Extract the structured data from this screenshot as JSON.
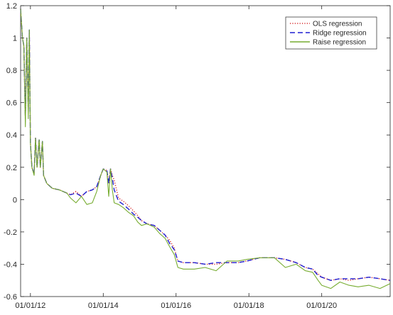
{
  "chart_data": {
    "type": "line",
    "title": "",
    "xlabel": "",
    "ylabel": "",
    "x_ticks": [
      "01/01/12",
      "01/01/14",
      "01/01/16",
      "01/01/18",
      "01/01/20"
    ],
    "x_tick_years": [
      2012,
      2014,
      2016,
      2018,
      2020
    ],
    "xlim": [
      2011.73,
      2021.88
    ],
    "ylim": [
      -0.6,
      1.2
    ],
    "y_ticks": [
      -0.6,
      -0.4,
      -0.2,
      0,
      0.2,
      0.4,
      0.6,
      0.8,
      1,
      1.2
    ],
    "y_tick_labels": [
      "-0.6",
      "-0.4",
      "-0.2",
      "0",
      "0.2",
      "0.4",
      "0.6",
      "0.8",
      "1",
      "1.2"
    ],
    "grid": false,
    "legend_position": "top-right",
    "series": [
      {
        "name": "OLS regression",
        "color": "#d62728",
        "style": "dotted",
        "x": [
          2011.73,
          2011.78,
          2011.82,
          2011.86,
          2011.9,
          2011.94,
          2011.97,
          2012.0,
          2012.04,
          2012.1,
          2012.14,
          2012.18,
          2012.24,
          2012.27,
          2012.33,
          2012.36,
          2012.45,
          2012.6,
          2012.8,
          2013.0,
          2013.1,
          2013.25,
          2013.4,
          2013.55,
          2013.7,
          2013.82,
          2013.93,
          2014.0,
          2014.1,
          2014.15,
          2014.2,
          2014.25,
          2014.3,
          2014.42,
          2014.55,
          2014.7,
          2014.83,
          2014.95,
          2015.05,
          2015.2,
          2015.4,
          2015.55,
          2015.7,
          2015.82,
          2015.95,
          2016.05,
          2016.2,
          2016.5,
          2016.8,
          2017.1,
          2017.4,
          2017.7,
          2017.95,
          2018.3,
          2018.7,
          2019.0,
          2019.3,
          2019.55,
          2019.75,
          2019.9,
          2020.0,
          2020.25,
          2020.5,
          2020.75,
          2021.0,
          2021.3,
          2021.6,
          2021.88
        ],
        "y": [
          1.18,
          1.0,
          0.95,
          0.5,
          1.0,
          0.55,
          1.05,
          0.35,
          0.2,
          0.16,
          0.38,
          0.2,
          0.37,
          0.2,
          0.36,
          0.15,
          0.1,
          0.07,
          0.06,
          0.04,
          0.03,
          0.05,
          0.02,
          0.05,
          0.06,
          0.08,
          0.15,
          0.19,
          0.18,
          0.1,
          0.19,
          0.15,
          0.12,
          0.01,
          -0.01,
          -0.04,
          -0.07,
          -0.1,
          -0.13,
          -0.15,
          -0.16,
          -0.19,
          -0.22,
          -0.25,
          -0.3,
          -0.38,
          -0.39,
          -0.39,
          -0.4,
          -0.4,
          -0.39,
          -0.39,
          -0.38,
          -0.36,
          -0.36,
          -0.37,
          -0.39,
          -0.42,
          -0.43,
          -0.46,
          -0.48,
          -0.5,
          -0.49,
          -0.5,
          -0.49,
          -0.48,
          -0.49,
          -0.5
        ]
      },
      {
        "name": "Ridge regression",
        "color": "#1f1fd2",
        "style": "dashed",
        "x": [
          2011.73,
          2011.78,
          2011.82,
          2011.86,
          2011.9,
          2011.94,
          2011.97,
          2012.0,
          2012.04,
          2012.1,
          2012.14,
          2012.18,
          2012.24,
          2012.27,
          2012.33,
          2012.36,
          2012.45,
          2012.6,
          2012.8,
          2013.0,
          2013.1,
          2013.25,
          2013.4,
          2013.55,
          2013.7,
          2013.82,
          2013.93,
          2014.0,
          2014.1,
          2014.15,
          2014.2,
          2014.25,
          2014.3,
          2014.42,
          2014.55,
          2014.7,
          2014.83,
          2014.95,
          2015.05,
          2015.2,
          2015.4,
          2015.55,
          2015.7,
          2015.82,
          2015.95,
          2016.05,
          2016.2,
          2016.5,
          2016.8,
          2017.1,
          2017.4,
          2017.7,
          2017.95,
          2018.3,
          2018.7,
          2019.0,
          2019.3,
          2019.55,
          2019.75,
          2019.9,
          2020.0,
          2020.25,
          2020.5,
          2020.75,
          2021.0,
          2021.3,
          2021.6,
          2021.88
        ],
        "y": [
          1.18,
          1.0,
          0.95,
          0.5,
          1.0,
          0.55,
          1.05,
          0.35,
          0.2,
          0.16,
          0.38,
          0.2,
          0.37,
          0.2,
          0.36,
          0.15,
          0.1,
          0.07,
          0.06,
          0.04,
          0.03,
          0.04,
          0.02,
          0.05,
          0.06,
          0.08,
          0.15,
          0.19,
          0.18,
          0.1,
          0.19,
          0.13,
          0.06,
          -0.01,
          -0.03,
          -0.06,
          -0.09,
          -0.11,
          -0.13,
          -0.15,
          -0.16,
          -0.19,
          -0.22,
          -0.27,
          -0.31,
          -0.38,
          -0.39,
          -0.39,
          -0.4,
          -0.39,
          -0.39,
          -0.39,
          -0.38,
          -0.36,
          -0.36,
          -0.37,
          -0.39,
          -0.42,
          -0.43,
          -0.47,
          -0.48,
          -0.5,
          -0.49,
          -0.49,
          -0.49,
          -0.48,
          -0.49,
          -0.5
        ]
      },
      {
        "name": "Raise regression",
        "color": "#77ac30",
        "style": "solid",
        "x": [
          2011.73,
          2011.78,
          2011.82,
          2011.86,
          2011.9,
          2011.94,
          2011.97,
          2012.0,
          2012.04,
          2012.1,
          2012.14,
          2012.18,
          2012.24,
          2012.27,
          2012.33,
          2012.36,
          2012.45,
          2012.6,
          2012.8,
          2013.0,
          2013.1,
          2013.25,
          2013.4,
          2013.55,
          2013.7,
          2013.82,
          2013.93,
          2014.0,
          2014.1,
          2014.15,
          2014.2,
          2014.25,
          2014.3,
          2014.42,
          2014.55,
          2014.7,
          2014.83,
          2014.95,
          2015.05,
          2015.2,
          2015.4,
          2015.55,
          2015.7,
          2015.82,
          2015.95,
          2016.05,
          2016.2,
          2016.5,
          2016.8,
          2017.1,
          2017.4,
          2017.7,
          2017.95,
          2018.3,
          2018.7,
          2019.0,
          2019.3,
          2019.55,
          2019.75,
          2019.9,
          2020.0,
          2020.25,
          2020.5,
          2020.75,
          2021.0,
          2021.3,
          2021.6,
          2021.88
        ],
        "y": [
          1.18,
          1.0,
          0.95,
          0.45,
          1.0,
          0.5,
          1.05,
          0.35,
          0.2,
          0.15,
          0.38,
          0.2,
          0.37,
          0.2,
          0.36,
          0.15,
          0.1,
          0.07,
          0.06,
          0.04,
          0.01,
          -0.02,
          0.02,
          -0.03,
          -0.02,
          0.05,
          0.15,
          0.19,
          0.17,
          0.02,
          0.19,
          0.06,
          -0.02,
          -0.03,
          -0.05,
          -0.08,
          -0.1,
          -0.14,
          -0.16,
          -0.15,
          -0.17,
          -0.21,
          -0.24,
          -0.29,
          -0.34,
          -0.42,
          -0.43,
          -0.43,
          -0.42,
          -0.44,
          -0.38,
          -0.38,
          -0.37,
          -0.36,
          -0.36,
          -0.42,
          -0.4,
          -0.44,
          -0.45,
          -0.5,
          -0.53,
          -0.55,
          -0.51,
          -0.53,
          -0.54,
          -0.53,
          -0.55,
          -0.52
        ]
      }
    ]
  }
}
